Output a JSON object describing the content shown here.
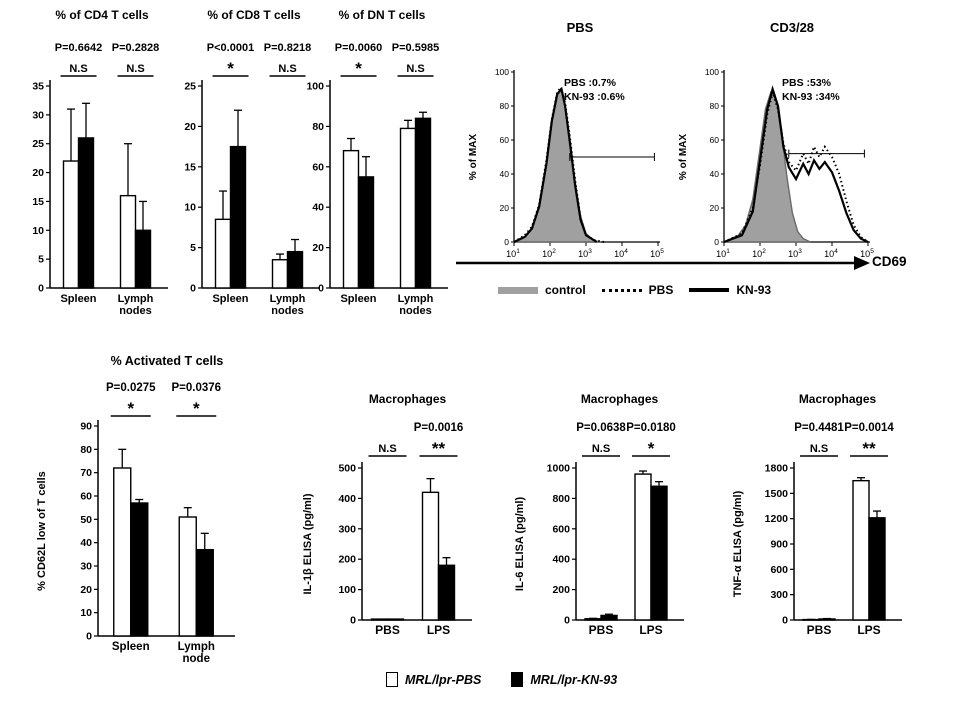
{
  "flow": {
    "xlabel": "CD69",
    "xtick_base": "10",
    "xtick_exponents": [
      1,
      2,
      3,
      4,
      5
    ],
    "yticks": [
      0,
      20,
      40,
      60,
      80,
      100
    ],
    "legend": [
      {
        "label": "control",
        "style": "filled",
        "color": "#a0a0a0"
      },
      {
        "label": "PBS",
        "style": "dotted",
        "color": "#000000"
      },
      {
        "label": "KN-93",
        "style": "solid",
        "color": "#000000"
      }
    ]
  },
  "bottom_legend": {
    "items": [
      {
        "label": "MRL/lpr-PBS",
        "fill": "#ffffff"
      },
      {
        "label": "MRL/lpr-KN-93",
        "fill": "#000000"
      }
    ]
  },
  "chart_data": [
    {
      "id": "cd4",
      "type": "bar",
      "title": "% of CD4 T cells",
      "p_values": [
        "P=0.6642",
        "P=0.2828"
      ],
      "sig_labels": [
        "N.S",
        "N.S"
      ],
      "categories": [
        "Spleen",
        "Lymph\nnodes"
      ],
      "series": [
        {
          "name": "MRL/lpr-PBS",
          "fill": "#ffffff",
          "values": [
            22,
            16
          ],
          "errors": [
            9,
            9
          ]
        },
        {
          "name": "MRL/lpr-KN-93",
          "fill": "#000000",
          "values": [
            26,
            10
          ],
          "errors": [
            6,
            5
          ]
        }
      ],
      "ylim": [
        0,
        35
      ],
      "yticks": [
        0,
        5,
        10,
        15,
        20,
        25,
        30,
        35
      ]
    },
    {
      "id": "cd8",
      "type": "bar",
      "title": "% of CD8 T cells",
      "p_values": [
        "P<0.0001",
        "P=0.8218"
      ],
      "sig_labels": [
        "*",
        "N.S"
      ],
      "categories": [
        "Spleen",
        "Lymph\nnodes"
      ],
      "series": [
        {
          "name": "MRL/lpr-PBS",
          "fill": "#ffffff",
          "values": [
            8.5,
            3.5
          ],
          "errors": [
            3.5,
            0.7
          ]
        },
        {
          "name": "MRL/lpr-KN-93",
          "fill": "#000000",
          "values": [
            17.5,
            4.5
          ],
          "errors": [
            4.5,
            1.5
          ]
        }
      ],
      "ylim": [
        0,
        25
      ],
      "yticks": [
        0,
        5,
        10,
        15,
        20,
        25
      ]
    },
    {
      "id": "dn",
      "type": "bar",
      "title": "% of DN T cells",
      "p_values": [
        "P=0.0060",
        "P=0.5985"
      ],
      "sig_labels": [
        "*",
        "N.S"
      ],
      "categories": [
        "Spleen",
        "Lymph\nnodes"
      ],
      "series": [
        {
          "name": "MRL/lpr-PBS",
          "fill": "#ffffff",
          "values": [
            68,
            79
          ],
          "errors": [
            6,
            4
          ]
        },
        {
          "name": "MRL/lpr-KN-93",
          "fill": "#000000",
          "values": [
            55,
            84
          ],
          "errors": [
            10,
            3
          ]
        }
      ],
      "ylim": [
        0,
        100
      ],
      "yticks": [
        0,
        20,
        40,
        60,
        80,
        100
      ]
    },
    {
      "id": "activated",
      "type": "bar",
      "title": "% Activated T cells",
      "ylabel": "% CD62L low of T cells",
      "p_values": [
        "P=0.0275",
        "P=0.0376"
      ],
      "sig_labels": [
        "*",
        "*"
      ],
      "categories": [
        "Spleen",
        "Lymph\nnode"
      ],
      "series": [
        {
          "name": "MRL/lpr-PBS",
          "fill": "#ffffff",
          "values": [
            72,
            51
          ],
          "errors": [
            8,
            4
          ]
        },
        {
          "name": "MRL/lpr-KN-93",
          "fill": "#000000",
          "values": [
            57,
            37
          ],
          "errors": [
            1.5,
            7
          ]
        }
      ],
      "ylim": [
        0,
        90
      ],
      "yticks": [
        0,
        10,
        20,
        30,
        40,
        50,
        60,
        70,
        80,
        90
      ]
    },
    {
      "id": "il1b",
      "type": "bar",
      "title": "Macrophages",
      "ylabel": "IL-1β ELISA (pg/ml)",
      "p_values": [
        "",
        "P=0.0016"
      ],
      "sig_labels": [
        "N.S",
        "**"
      ],
      "categories": [
        "PBS",
        "LPS"
      ],
      "series": [
        {
          "name": "MRL/lpr-PBS",
          "fill": "#ffffff",
          "values": [
            3,
            420
          ],
          "errors": [
            0,
            45
          ]
        },
        {
          "name": "MRL/lpr-KN-93",
          "fill": "#000000",
          "values": [
            3,
            180
          ],
          "errors": [
            0,
            25
          ]
        }
      ],
      "ylim": [
        0,
        500
      ],
      "yticks": [
        0,
        100,
        200,
        300,
        400,
        500
      ]
    },
    {
      "id": "il6",
      "type": "bar",
      "title": "Macrophages",
      "ylabel": "IL-6 ELISA (pg/ml)",
      "p_values": [
        "P=0.0638",
        "P=0.0180"
      ],
      "sig_labels": [
        "N.S",
        "*"
      ],
      "categories": [
        "PBS",
        "LPS"
      ],
      "series": [
        {
          "name": "MRL/lpr-PBS",
          "fill": "#ffffff",
          "values": [
            8,
            960
          ],
          "errors": [
            3,
            20
          ]
        },
        {
          "name": "MRL/lpr-KN-93",
          "fill": "#000000",
          "values": [
            30,
            880
          ],
          "errors": [
            8,
            30
          ]
        }
      ],
      "ylim": [
        0,
        1000
      ],
      "yticks": [
        0,
        200,
        400,
        600,
        800,
        1000
      ]
    },
    {
      "id": "tnfa",
      "type": "bar",
      "title": "Macrophages",
      "ylabel": "TNF-α ELISA (pg/ml)",
      "p_values": [
        "P=0.4481",
        "P=0.0014"
      ],
      "sig_labels": [
        "N.S",
        "**"
      ],
      "categories": [
        "PBS",
        "LPS"
      ],
      "series": [
        {
          "name": "MRL/lpr-PBS",
          "fill": "#ffffff",
          "values": [
            5,
            1650
          ],
          "errors": [
            2,
            35
          ]
        },
        {
          "name": "MRL/lpr-KN-93",
          "fill": "#000000",
          "values": [
            12,
            1210
          ],
          "errors": [
            5,
            80
          ]
        }
      ],
      "ylim": [
        0,
        1800
      ],
      "yticks": [
        0,
        300,
        600,
        900,
        1200,
        1500,
        1800
      ]
    },
    {
      "id": "flow-pbs",
      "type": "histogram",
      "title": "PBS",
      "ylabel": "% of MAX",
      "annotations": [
        "PBS :0.7%",
        "KN-93 :0.6%"
      ],
      "gate": {
        "x1": 2.55,
        "x2": 4.9,
        "y": 50
      },
      "curves": [
        {
          "name": "control",
          "style": "filled",
          "points": [
            [
              1.0,
              0
            ],
            [
              1.3,
              3
            ],
            [
              1.5,
              8
            ],
            [
              1.7,
              20
            ],
            [
              1.9,
              45
            ],
            [
              2.05,
              70
            ],
            [
              2.2,
              86
            ],
            [
              2.3,
              90
            ],
            [
              2.4,
              82
            ],
            [
              2.55,
              60
            ],
            [
              2.7,
              35
            ],
            [
              2.85,
              15
            ],
            [
              3.0,
              5
            ],
            [
              3.2,
              1
            ],
            [
              3.4,
              0
            ]
          ]
        },
        {
          "name": "PBS",
          "style": "dotted",
          "points": [
            [
              1.0,
              0
            ],
            [
              1.3,
              4
            ],
            [
              1.5,
              9
            ],
            [
              1.7,
              22
            ],
            [
              1.9,
              48
            ],
            [
              2.05,
              72
            ],
            [
              2.2,
              88
            ],
            [
              2.3,
              91
            ],
            [
              2.42,
              82
            ],
            [
              2.55,
              62
            ],
            [
              2.7,
              36
            ],
            [
              2.85,
              14
            ],
            [
              3.0,
              4
            ],
            [
              3.25,
              1
            ],
            [
              3.5,
              0
            ]
          ]
        },
        {
          "name": "KN-93",
          "style": "solid",
          "points": [
            [
              1.0,
              0
            ],
            [
              1.3,
              3
            ],
            [
              1.5,
              8
            ],
            [
              1.7,
              21
            ],
            [
              1.9,
              46
            ],
            [
              2.05,
              71
            ],
            [
              2.2,
              87
            ],
            [
              2.32,
              90
            ],
            [
              2.42,
              80
            ],
            [
              2.55,
              59
            ],
            [
              2.7,
              33
            ],
            [
              2.85,
              13
            ],
            [
              3.0,
              4
            ],
            [
              3.3,
              0
            ]
          ]
        }
      ]
    },
    {
      "id": "flow-cd328",
      "type": "histogram",
      "title": "CD3/28",
      "ylabel": "% of MAX",
      "annotations": [
        "PBS :53%",
        "KN-93 :34%"
      ],
      "gate": {
        "x1": 2.8,
        "x2": 4.9,
        "y": 52
      },
      "curves": [
        {
          "name": "control",
          "style": "filled",
          "points": [
            [
              1.0,
              0
            ],
            [
              1.4,
              4
            ],
            [
              1.6,
              10
            ],
            [
              1.8,
              25
            ],
            [
              2.0,
              55
            ],
            [
              2.15,
              78
            ],
            [
              2.3,
              88
            ],
            [
              2.45,
              84
            ],
            [
              2.6,
              64
            ],
            [
              2.75,
              38
            ],
            [
              2.9,
              17
            ],
            [
              3.05,
              6
            ],
            [
              3.2,
              2
            ],
            [
              3.4,
              0
            ]
          ]
        },
        {
          "name": "PBS",
          "style": "dotted",
          "points": [
            [
              1.0,
              0
            ],
            [
              1.5,
              5
            ],
            [
              1.8,
              20
            ],
            [
              2.0,
              45
            ],
            [
              2.2,
              75
            ],
            [
              2.35,
              88
            ],
            [
              2.5,
              78
            ],
            [
              2.65,
              58
            ],
            [
              2.8,
              47
            ],
            [
              3.0,
              42
            ],
            [
              3.2,
              52
            ],
            [
              3.35,
              46
            ],
            [
              3.5,
              56
            ],
            [
              3.65,
              50
            ],
            [
              3.8,
              56
            ],
            [
              4.0,
              50
            ],
            [
              4.2,
              40
            ],
            [
              4.4,
              24
            ],
            [
              4.6,
              10
            ],
            [
              4.8,
              3
            ],
            [
              5.0,
              0
            ]
          ]
        },
        {
          "name": "KN-93",
          "style": "solid",
          "points": [
            [
              1.0,
              0
            ],
            [
              1.5,
              4
            ],
            [
              1.8,
              18
            ],
            [
              2.0,
              48
            ],
            [
              2.2,
              78
            ],
            [
              2.35,
              90
            ],
            [
              2.5,
              80
            ],
            [
              2.65,
              56
            ],
            [
              2.8,
              44
            ],
            [
              3.0,
              37
            ],
            [
              3.2,
              46
            ],
            [
              3.35,
              40
            ],
            [
              3.5,
              48
            ],
            [
              3.65,
              43
            ],
            [
              3.8,
              47
            ],
            [
              4.0,
              41
            ],
            [
              4.2,
              30
            ],
            [
              4.4,
              17
            ],
            [
              4.6,
              7
            ],
            [
              4.8,
              2
            ],
            [
              5.0,
              0
            ]
          ]
        }
      ]
    }
  ]
}
